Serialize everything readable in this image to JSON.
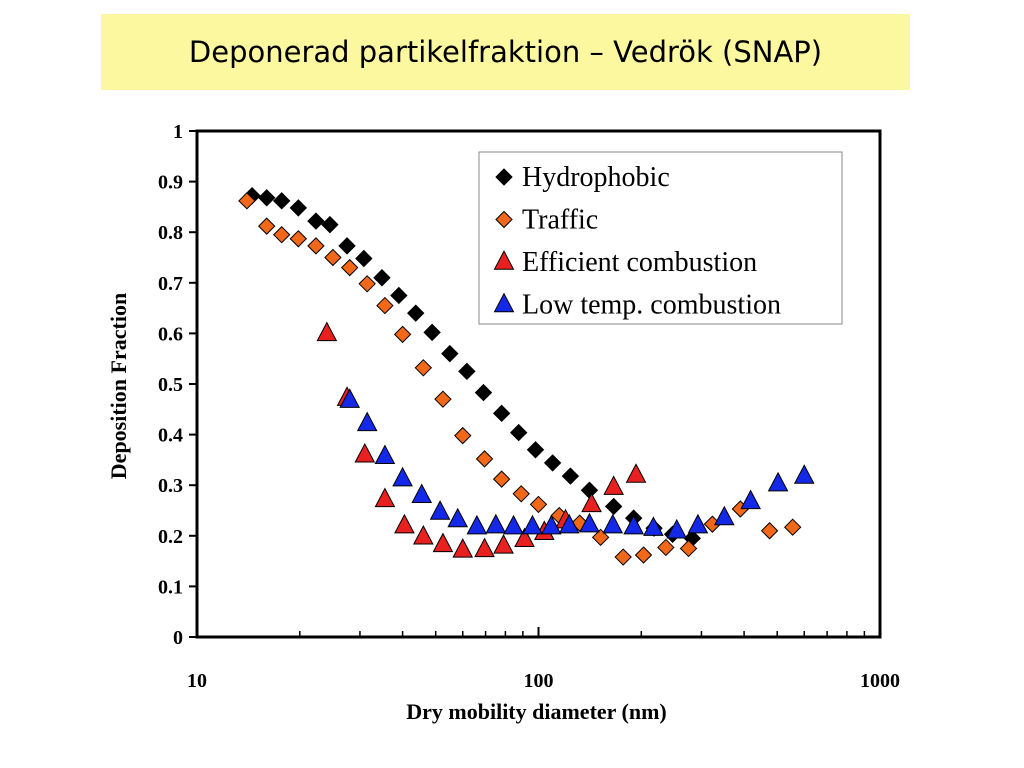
{
  "slide": {
    "title": "Deponerad partikelfraktion – Vedrök (SNAP)",
    "title_bg": "#FCF8A0"
  },
  "chart_data": {
    "type": "scatter",
    "title": "",
    "xlabel": "Dry mobility diameter (nm)",
    "ylabel": "Deposition Fraction",
    "xscale": "log",
    "xlim": [
      10,
      1000
    ],
    "ylim": [
      0,
      1
    ],
    "xticks": [
      10,
      100,
      1000
    ],
    "xtick_labels": [
      "10",
      "100",
      "1000"
    ],
    "yticks": [
      0,
      0.1,
      0.2,
      0.3,
      0.4,
      0.5,
      0.6,
      0.7,
      0.8,
      0.9,
      1
    ],
    "ytick_labels": [
      "0",
      "0.1",
      "0.2",
      "0.3",
      "0.4",
      "0.5",
      "0.6",
      "0.7",
      "0.8",
      "0.9",
      "1"
    ],
    "grid": false,
    "legend": {
      "position": "top-right"
    },
    "series": [
      {
        "name": "Hydrophobic",
        "marker": "diamond",
        "color": "#000000",
        "x": [
          14.5,
          16.0,
          17.7,
          19.8,
          22.3,
          24.5,
          27.5,
          30.8,
          34.8,
          39.0,
          43.7,
          48.8,
          55.0,
          61.7,
          69.0,
          78.0,
          87.5,
          98.0,
          110,
          124,
          141,
          166,
          190,
          218,
          247,
          282
        ],
        "y": [
          0.872,
          0.868,
          0.862,
          0.848,
          0.822,
          0.815,
          0.773,
          0.748,
          0.71,
          0.675,
          0.64,
          0.602,
          0.56,
          0.525,
          0.483,
          0.442,
          0.404,
          0.37,
          0.344,
          0.318,
          0.29,
          0.258,
          0.235,
          0.215,
          0.203,
          0.195
        ]
      },
      {
        "name": "Traffic",
        "marker": "diamond",
        "color": "#F06818",
        "x": [
          14.0,
          16.0,
          17.7,
          19.8,
          22.3,
          25.0,
          28.0,
          31.5,
          35.5,
          40.0,
          46.0,
          52.5,
          60.0,
          69.5,
          78.0,
          89.0,
          100,
          115,
          132,
          152,
          177,
          203,
          236,
          275,
          323,
          390,
          475,
          555
        ],
        "y": [
          0.862,
          0.812,
          0.795,
          0.787,
          0.773,
          0.75,
          0.73,
          0.698,
          0.655,
          0.598,
          0.532,
          0.47,
          0.398,
          0.352,
          0.312,
          0.283,
          0.262,
          0.24,
          0.225,
          0.197,
          0.158,
          0.162,
          0.177,
          0.175,
          0.223,
          0.253,
          0.21,
          0.217
        ]
      },
      {
        "name": "Efficient combustion",
        "marker": "triangle",
        "color": "#E82020",
        "x": [
          24.0,
          27.5,
          31.0,
          35.5,
          40.5,
          46.0,
          52.5,
          60.0,
          69.5,
          79.0,
          91.0,
          104,
          120,
          143,
          166,
          193
        ],
        "y": [
          0.6,
          0.472,
          0.36,
          0.272,
          0.22,
          0.198,
          0.183,
          0.172,
          0.173,
          0.18,
          0.193,
          0.207,
          0.23,
          0.262,
          0.296,
          0.32
        ]
      },
      {
        "name": "Low temp. combustion",
        "marker": "triangle",
        "color": "#1428E8",
        "x": [
          28.0,
          31.5,
          35.5,
          40.0,
          45.5,
          51.5,
          58.0,
          66.0,
          75.0,
          84.5,
          96.0,
          109,
          123,
          141,
          165,
          190,
          217,
          254,
          293,
          350,
          418,
          503,
          600
        ],
        "y": [
          0.468,
          0.422,
          0.357,
          0.313,
          0.28,
          0.247,
          0.232,
          0.218,
          0.22,
          0.218,
          0.218,
          0.218,
          0.22,
          0.222,
          0.22,
          0.218,
          0.215,
          0.21,
          0.22,
          0.236,
          0.268,
          0.303,
          0.318
        ]
      }
    ]
  }
}
